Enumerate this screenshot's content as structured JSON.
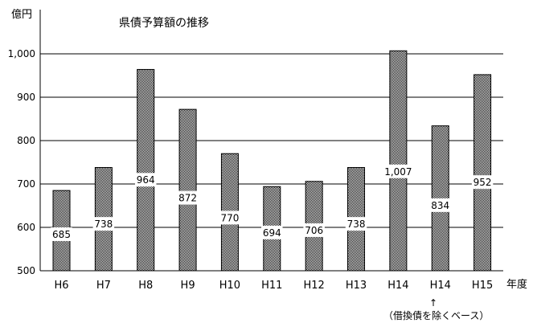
{
  "chart_data": {
    "type": "bar",
    "title": "県債予算額の推移",
    "ylabel": "億円",
    "xlabel": "年度",
    "ylim": [
      500,
      1000
    ],
    "yticks": [
      500,
      600,
      700,
      800,
      900,
      1000
    ],
    "ytick_labels": [
      "500",
      "600",
      "700",
      "800",
      "900",
      "1,000"
    ],
    "grid": true,
    "categories": [
      "H6",
      "H7",
      "H8",
      "H9",
      "H10",
      "H11",
      "H12",
      "H13",
      "H14",
      "H14",
      "H15"
    ],
    "values": [
      685,
      738,
      964,
      872,
      770,
      694,
      706,
      738,
      1007,
      834,
      952
    ],
    "value_labels": [
      "685",
      "738",
      "964",
      "872",
      "770",
      "694",
      "706",
      "738",
      "1,007",
      "834",
      "952"
    ],
    "annotation": {
      "arrow": "↑",
      "text": "（借換債を除くベース）",
      "category_index": 9
    },
    "bar_pattern_colors": [
      "#000000",
      "#ffffff"
    ]
  }
}
